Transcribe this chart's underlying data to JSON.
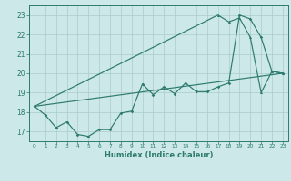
{
  "xlabel": "Humidex (Indice chaleur)",
  "bg_color": "#cce8e8",
  "grid_color": "#aacccc",
  "line_color": "#2d7a6e",
  "xmin": -0.5,
  "xmax": 23.5,
  "ymin": 16.5,
  "ymax": 23.5,
  "yticks": [
    17,
    18,
    19,
    20,
    21,
    22,
    23
  ],
  "xticks": [
    0,
    1,
    2,
    3,
    4,
    5,
    6,
    7,
    8,
    9,
    10,
    11,
    12,
    13,
    14,
    15,
    16,
    17,
    18,
    19,
    20,
    21,
    22,
    23
  ],
  "line1_x": [
    0,
    23
  ],
  "line1_y": [
    18.3,
    20.0
  ],
  "line2_x": [
    0,
    1,
    2,
    3,
    4,
    5,
    6,
    7,
    8,
    9,
    10,
    11,
    12,
    13,
    14,
    15,
    16,
    17,
    18,
    19,
    20,
    21,
    22,
    23
  ],
  "line2_y": [
    18.3,
    17.85,
    17.2,
    17.5,
    16.85,
    16.75,
    17.1,
    17.1,
    17.95,
    18.05,
    19.45,
    18.9,
    19.3,
    18.95,
    19.5,
    19.05,
    19.05,
    19.3,
    19.5,
    23.0,
    22.8,
    21.85,
    20.1,
    20.0
  ],
  "line3_x": [
    0,
    17,
    18,
    19,
    20,
    21,
    22,
    23
  ],
  "line3_y": [
    18.3,
    23.0,
    22.65,
    22.85,
    21.85,
    19.0,
    20.1,
    20.0
  ]
}
